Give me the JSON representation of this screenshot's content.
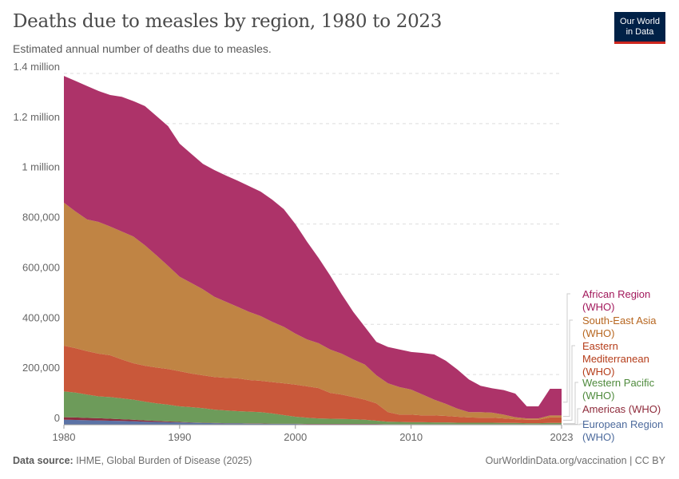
{
  "header": {
    "title": "Deaths due to measles by region, 1980 to 2023",
    "subtitle": "Estimated annual number of deaths due to measles.",
    "logo_text": "Our World in Data"
  },
  "footer": {
    "source_label": "Data source:",
    "source": "IHME, Global Burden of Disease (2025)",
    "credit": "OurWorldinData.org/vaccination | CC BY"
  },
  "chart_data": {
    "type": "area",
    "stacked": true,
    "title": "Deaths due to measles by region, 1980 to 2023",
    "subtitle": "Estimated annual number of deaths due to measles.",
    "xlim": [
      1980,
      2023
    ],
    "ylim": [
      0,
      1400000
    ],
    "grid": "horizontal dashed",
    "legend": "right (labels at series ends)",
    "x_ticks": [
      "1980",
      "1990",
      "2000",
      "2010",
      "2023"
    ],
    "y_ticks": [
      {
        "value": 0,
        "label": "0"
      },
      {
        "value": 200000,
        "label": "200,000"
      },
      {
        "value": 400000,
        "label": "400,000"
      },
      {
        "value": 600000,
        "label": "600,000"
      },
      {
        "value": 800000,
        "label": "800,000"
      },
      {
        "value": 1000000,
        "label": "1 million"
      },
      {
        "value": 1200000,
        "label": "1.2 million"
      },
      {
        "value": 1400000,
        "label": "1.4 million"
      }
    ],
    "x": [
      1980,
      1981,
      1982,
      1983,
      1984,
      1985,
      1986,
      1987,
      1988,
      1989,
      1990,
      1991,
      1992,
      1993,
      1994,
      1995,
      1996,
      1997,
      1998,
      1999,
      2000,
      2001,
      2002,
      2003,
      2004,
      2005,
      2006,
      2007,
      2008,
      2009,
      2010,
      2011,
      2012,
      2013,
      2014,
      2015,
      2016,
      2017,
      2018,
      2019,
      2020,
      2021,
      2022,
      2023
    ],
    "series": [
      {
        "name": "European Region (WHO)",
        "line1": "European Region",
        "line2": "(WHO)",
        "color": "#5b73a6",
        "label_color": "#4c6a9c",
        "values": [
          20000,
          19000,
          18000,
          17000,
          16000,
          15000,
          14000,
          12000,
          11000,
          10000,
          9000,
          8000,
          7000,
          6000,
          5000,
          5000,
          4000,
          4000,
          3000,
          3000,
          3000,
          2000,
          2000,
          2000,
          2000,
          2000,
          2000,
          2000,
          1000,
          1000,
          1000,
          1000,
          1000,
          1000,
          1000,
          1000,
          1000,
          1000,
          1000,
          1000,
          1000,
          1000,
          1000,
          1000
        ]
      },
      {
        "name": "Americas (WHO)",
        "line1": "Americas (WHO)",
        "line2": "",
        "color": "#8c2d3e",
        "label_color": "#8e2a3a",
        "values": [
          10000,
          10000,
          9000,
          9000,
          8000,
          7000,
          6000,
          5000,
          4000,
          3000,
          2000,
          1000,
          1000,
          1000,
          1000,
          1000,
          1000,
          1000,
          1000,
          1000,
          1000,
          1000,
          1000,
          1000,
          1000,
          1000,
          1000,
          1000,
          1000,
          1000,
          1000,
          1000,
          1000,
          1000,
          1000,
          1000,
          1000,
          1000,
          1000,
          1000,
          1000,
          1000,
          1000,
          1000
        ]
      },
      {
        "name": "Western Pacific (WHO)",
        "line1": "Western Pacific",
        "line2": "(WHO)",
        "color": "#6d9b5a",
        "label_color": "#4e8a3c",
        "values": [
          103000,
          99000,
          93000,
          87000,
          86000,
          83000,
          80000,
          75000,
          70000,
          67000,
          62000,
          61000,
          58000,
          53000,
          51000,
          48000,
          47000,
          45000,
          41000,
          34000,
          28000,
          25000,
          22000,
          21000,
          20000,
          19000,
          17000,
          13000,
          10000,
          9000,
          8000,
          8000,
          7000,
          7000,
          6000,
          6000,
          6000,
          6000,
          5000,
          5000,
          4000,
          4000,
          5000,
          5000
        ]
      },
      {
        "name": "Eastern Mediterranean (WHO)",
        "line1": "Eastern",
        "line1b": "Mediterranean",
        "line2": "(WHO)",
        "color": "#c9583a",
        "label_color": "#b53d1a",
        "values": [
          182000,
          177000,
          173000,
          170000,
          167000,
          155000,
          145000,
          143000,
          143000,
          142000,
          140000,
          134000,
          131000,
          130000,
          130000,
          131000,
          126000,
          125000,
          125000,
          127000,
          128000,
          125000,
          121000,
          103000,
          97000,
          88000,
          80000,
          69000,
          38000,
          29000,
          30000,
          27000,
          28000,
          26000,
          24000,
          21000,
          20000,
          20000,
          18000,
          15000,
          14000,
          14000,
          22000,
          22000
        ]
      },
      {
        "name": "South-East Asia (WHO)",
        "line1": "South-East Asia",
        "line2": "(WHO)",
        "color": "#c08444",
        "label_color": "#b7661f",
        "values": [
          570000,
          545000,
          525000,
          525000,
          513000,
          510000,
          505000,
          480000,
          447000,
          411000,
          377000,
          361000,
          343000,
          320000,
          303000,
          285000,
          272000,
          258000,
          240000,
          225000,
          203000,
          187000,
          179000,
          173000,
          163000,
          150000,
          140000,
          112000,
          115000,
          110000,
          100000,
          83000,
          63000,
          48000,
          32000,
          21000,
          22000,
          20000,
          15000,
          8000,
          5000,
          5000,
          8000,
          8000
        ]
      },
      {
        "name": "African Region (WHO)",
        "line1": "African Region",
        "line2": "(WHO)",
        "color": "#ad3369",
        "label_color": "#a2185b",
        "values": [
          505000,
          520000,
          532000,
          522000,
          524000,
          537000,
          540000,
          555000,
          555000,
          557000,
          530000,
          515000,
          500000,
          505000,
          503000,
          503000,
          501000,
          496000,
          487000,
          469000,
          437000,
          390000,
          340000,
          295000,
          237000,
          190000,
          150000,
          133000,
          145000,
          150000,
          150000,
          166000,
          180000,
          172000,
          156000,
          130000,
          105000,
          97000,
          98000,
          94000,
          48000,
          48000,
          106000,
          106000
        ]
      }
    ]
  }
}
